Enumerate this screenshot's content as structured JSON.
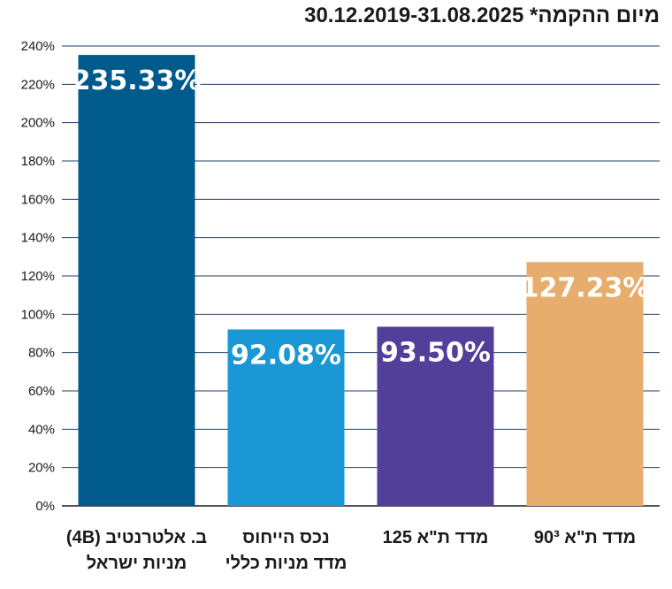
{
  "chart_data": {
    "type": "bar",
    "title": "מיום ההקמה* 30.12.2019-31.08.2025",
    "xlabel": "",
    "ylabel": "",
    "ylim": [
      0,
      240
    ],
    "yticks": [
      0,
      20,
      40,
      60,
      80,
      100,
      120,
      140,
      160,
      180,
      200,
      220,
      240
    ],
    "ytick_labels": [
      "0%",
      "20%",
      "40%",
      "60%",
      "80%",
      "100%",
      "120%",
      "140%",
      "160%",
      "180%",
      "200%",
      "220%",
      "240%"
    ],
    "grid": true,
    "categories": [
      [
        "ב. אלטרנטיב (4B)",
        "מניות ישראל"
      ],
      [
        "נכס הייחוס",
        "מדד מניות כללי"
      ],
      [
        "מדד ת\"א 125"
      ],
      [
        "מדד ת\"א 90³"
      ]
    ],
    "values": [
      235.33,
      92.08,
      93.5,
      127.23
    ],
    "value_labels": [
      "235.33%",
      "92.08%",
      "93.50%",
      "127.23%"
    ],
    "colors": [
      "#005a8c",
      "#1a98d5",
      "#523f99",
      "#e7ad6d"
    ]
  }
}
